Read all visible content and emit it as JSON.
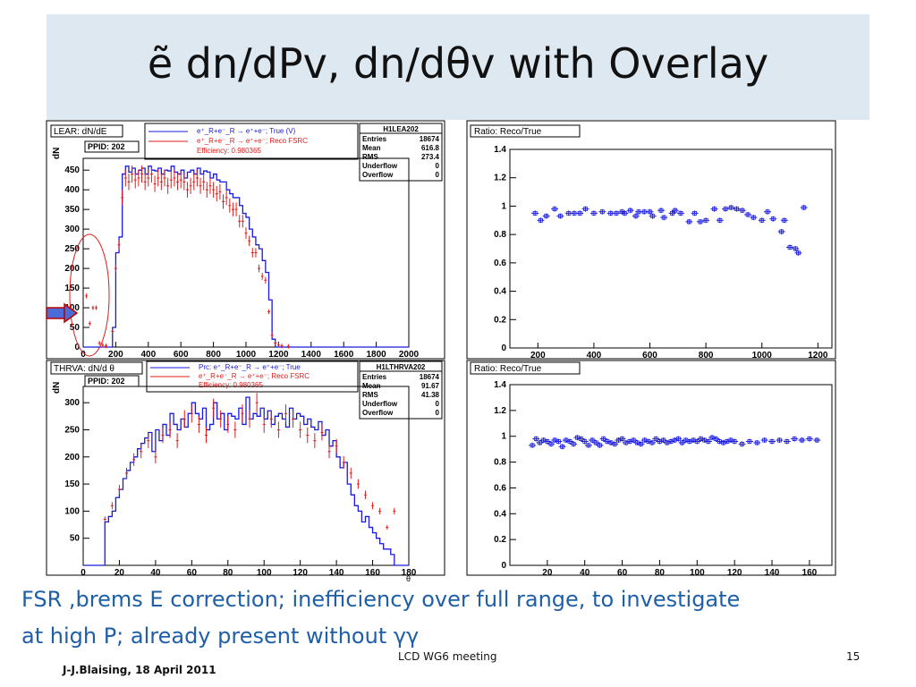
{
  "slide": {
    "title": "ẽ dn/dPv, dn/dθv with Overlay",
    "caption_line1": "FSR ,brems E correction; inefficiency over full range, to investigate",
    "caption_line2": "at high P; already present without γγ",
    "footer_author": "J-J.Blaising, 18 April 2011",
    "footer_meeting": "LCD WG6 meeting",
    "page_number": "15"
  },
  "colors": {
    "title_band": "#dde8f1",
    "true_series": "#1a1adc",
    "reco_series": "#e11d1d",
    "caption": "#1f5fa8"
  },
  "chart_data": [
    {
      "type": "line",
      "title": "LEAR: dN/dE",
      "ppid": "PPID: 202",
      "ylabel": "dN",
      "xlim": [
        0,
        2000
      ],
      "ylim": [
        0,
        480
      ],
      "xticks": [
        0,
        200,
        400,
        600,
        800,
        1000,
        1200,
        1400,
        1600,
        1800,
        2000
      ],
      "yticks": [
        0,
        50,
        100,
        150,
        200,
        250,
        300,
        350,
        400,
        450
      ],
      "legend": {
        "line1": "e⁺_R+e⁻_R → e⁺+e⁻; True (V)",
        "line2": "e⁺_R+e⁻_R → e⁺+e⁻; Reco FSRC",
        "line3": "Efficiency: 0.980365"
      },
      "stats": {
        "name": "H1LEA202",
        "rows": [
          [
            "Entries",
            "18674"
          ],
          [
            "Mean",
            "616.8"
          ],
          [
            "RMS",
            "273.4"
          ],
          [
            "Underflow",
            "0"
          ],
          [
            "Overflow",
            "0"
          ]
        ]
      },
      "series": [
        {
          "name": "True (V)",
          "x": [
            0,
            20,
            40,
            60,
            80,
            100,
            120,
            140,
            160,
            180,
            200,
            220,
            240,
            260,
            280,
            300,
            320,
            340,
            360,
            380,
            400,
            420,
            440,
            460,
            480,
            500,
            520,
            540,
            560,
            580,
            600,
            620,
            640,
            660,
            680,
            700,
            720,
            740,
            760,
            780,
            800,
            820,
            840,
            860,
            880,
            900,
            920,
            940,
            960,
            980,
            1000,
            1020,
            1040,
            1060,
            1080,
            1100,
            1120,
            1140,
            1160,
            1180,
            1200,
            1220,
            1240,
            1260,
            1280,
            1300,
            1400,
            1500,
            1600,
            1700,
            1800,
            1900,
            2000
          ],
          "values": [
            0,
            0,
            0,
            0,
            0,
            0,
            0,
            0,
            0,
            50,
            240,
            280,
            440,
            460,
            445,
            455,
            440,
            450,
            455,
            440,
            460,
            450,
            448,
            455,
            440,
            450,
            448,
            460,
            445,
            440,
            450,
            430,
            445,
            450,
            440,
            455,
            440,
            448,
            445,
            430,
            440,
            425,
            420,
            420,
            400,
            390,
            380,
            380,
            360,
            340,
            330,
            300,
            280,
            260,
            250,
            220,
            190,
            120,
            20,
            0,
            0,
            0,
            0,
            0,
            0,
            0,
            0,
            0,
            0,
            0,
            0,
            0,
            0
          ]
        },
        {
          "name": "Reco FSRC",
          "x": [
            20,
            40,
            60,
            80,
            100,
            120,
            140,
            180,
            200,
            220,
            240,
            260,
            280,
            300,
            320,
            340,
            360,
            380,
            400,
            420,
            440,
            460,
            480,
            500,
            520,
            540,
            560,
            580,
            600,
            620,
            640,
            660,
            680,
            700,
            720,
            740,
            760,
            780,
            800,
            820,
            840,
            860,
            880,
            900,
            920,
            940,
            960,
            980,
            1000,
            1020,
            1040,
            1060,
            1080,
            1100,
            1120,
            1140,
            1160,
            1180,
            1200,
            1220,
            1260
          ],
          "values": [
            130,
            60,
            100,
            100,
            10,
            5,
            3,
            40,
            200,
            260,
            380,
            430,
            420,
            440,
            425,
            430,
            440,
            420,
            430,
            440,
            415,
            430,
            420,
            430,
            410,
            425,
            430,
            420,
            425,
            420,
            400,
            410,
            420,
            430,
            410,
            420,
            400,
            410,
            400,
            390,
            395,
            370,
            380,
            360,
            350,
            350,
            320,
            320,
            290,
            270,
            240,
            240,
            200,
            180,
            170,
            90,
            30,
            10,
            5,
            3,
            2
          ]
        }
      ]
    },
    {
      "type": "scatter",
      "title": "Ratio: Reco/True",
      "xlim": [
        100,
        1250
      ],
      "ylim": [
        0,
        1.4
      ],
      "xticks": [
        200,
        400,
        600,
        800,
        1000,
        1200
      ],
      "yticks": [
        0,
        0.2,
        0.4,
        0.6,
        0.8,
        1,
        1.2,
        1.4
      ],
      "series": [
        {
          "name": "Ratio",
          "x": [
            190,
            210,
            230,
            260,
            280,
            310,
            330,
            350,
            370,
            400,
            430,
            460,
            480,
            500,
            510,
            530,
            550,
            560,
            580,
            600,
            610,
            640,
            650,
            680,
            690,
            710,
            740,
            760,
            780,
            800,
            830,
            850,
            870,
            890,
            910,
            930,
            950,
            970,
            1000,
            1020,
            1040,
            1070,
            1080,
            1100,
            1120,
            1130,
            1150
          ],
          "values": [
            0.95,
            0.9,
            0.93,
            0.98,
            0.93,
            0.95,
            0.95,
            0.95,
            0.98,
            0.95,
            0.96,
            0.95,
            0.95,
            0.96,
            0.95,
            0.97,
            0.93,
            0.96,
            0.96,
            0.96,
            0.93,
            0.97,
            0.92,
            0.95,
            0.97,
            0.95,
            0.89,
            0.95,
            0.89,
            0.9,
            0.98,
            0.9,
            0.98,
            0.99,
            0.98,
            0.97,
            0.94,
            0.92,
            0.9,
            0.96,
            0.91,
            0.82,
            0.9,
            0.71,
            0.7,
            0.67,
            0.99
          ]
        }
      ]
    },
    {
      "type": "line",
      "title": "THRVA: dN/d θ",
      "ppid": "PPID: 202",
      "ylabel": "dN",
      "xlabel": "θ",
      "xlim": [
        0,
        180
      ],
      "ylim": [
        0,
        330
      ],
      "xticks": [
        0,
        20,
        40,
        60,
        80,
        100,
        120,
        140,
        160,
        180
      ],
      "yticks": [
        50,
        100,
        150,
        200,
        250,
        300
      ],
      "legend": {
        "line1": "Prc: e⁺_R+e⁻_R → e⁺+e⁻; True",
        "line2": "e⁺_R+e⁻_R → e⁺+e⁻; Reco FSRC",
        "line3": "Efficiency: 0.980365"
      },
      "stats": {
        "name": "H1LTHRVA202",
        "rows": [
          [
            "Entries",
            "18674"
          ],
          [
            "Mean",
            "91.67"
          ],
          [
            "RMS",
            "41.38"
          ],
          [
            "Underflow",
            "0"
          ],
          [
            "Overflow",
            "0"
          ]
        ]
      },
      "series": [
        {
          "name": "True",
          "x": [
            0,
            5,
            10,
            12,
            14,
            16,
            18,
            20,
            22,
            24,
            26,
            28,
            30,
            32,
            34,
            36,
            38,
            40,
            42,
            44,
            46,
            48,
            50,
            52,
            54,
            56,
            58,
            60,
            62,
            64,
            66,
            68,
            70,
            72,
            74,
            76,
            78,
            80,
            82,
            84,
            86,
            88,
            90,
            92,
            94,
            96,
            98,
            100,
            102,
            104,
            106,
            108,
            110,
            112,
            114,
            116,
            118,
            120,
            122,
            124,
            126,
            128,
            130,
            132,
            134,
            136,
            138,
            140,
            142,
            144,
            146,
            148,
            150,
            152,
            154,
            156,
            158,
            160,
            162,
            164,
            166,
            168,
            170,
            172,
            175,
            180
          ],
          "values": [
            0,
            0,
            0,
            80,
            90,
            100,
            125,
            140,
            160,
            175,
            190,
            200,
            215,
            225,
            235,
            245,
            210,
            250,
            230,
            260,
            240,
            280,
            260,
            250,
            270,
            255,
            280,
            300,
            280,
            270,
            290,
            250,
            260,
            300,
            270,
            280,
            250,
            280,
            275,
            270,
            290,
            260,
            310,
            270,
            280,
            275,
            290,
            270,
            285,
            260,
            275,
            280,
            270,
            255,
            290,
            270,
            280,
            275,
            260,
            270,
            255,
            250,
            265,
            240,
            250,
            220,
            230,
            200,
            180,
            190,
            150,
            130,
            110,
            100,
            80,
            90,
            70,
            60,
            50,
            40,
            30,
            30,
            20,
            0,
            0,
            0
          ]
        },
        {
          "name": "Reco FSRC",
          "x": [
            12,
            16,
            20,
            24,
            28,
            32,
            36,
            40,
            44,
            48,
            52,
            56,
            60,
            64,
            68,
            72,
            76,
            80,
            84,
            88,
            92,
            96,
            100,
            104,
            108,
            112,
            116,
            120,
            124,
            128,
            132,
            136,
            140,
            144,
            148,
            152,
            156,
            160,
            164,
            168,
            172
          ],
          "values": [
            85,
            110,
            140,
            170,
            195,
            210,
            230,
            200,
            240,
            250,
            230,
            270,
            280,
            260,
            240,
            290,
            270,
            260,
            250,
            280,
            270,
            300,
            260,
            270,
            250,
            280,
            270,
            250,
            240,
            230,
            245,
            210,
            220,
            190,
            170,
            150,
            130,
            110,
            100,
            70,
            100
          ]
        }
      ]
    },
    {
      "type": "scatter",
      "title": "Ratio: Reco/True",
      "xlim": [
        0,
        172
      ],
      "ylim": [
        0,
        1.4
      ],
      "xticks": [
        20,
        40,
        60,
        80,
        100,
        120,
        140,
        160
      ],
      "yticks": [
        0,
        0.2,
        0.4,
        0.6,
        0.8,
        1,
        1.2,
        1.4
      ],
      "series": [
        {
          "name": "Ratio",
          "x": [
            12,
            14,
            16,
            18,
            20,
            22,
            24,
            26,
            28,
            30,
            32,
            34,
            36,
            38,
            40,
            42,
            44,
            46,
            48,
            50,
            52,
            54,
            56,
            58,
            60,
            62,
            64,
            66,
            68,
            70,
            72,
            74,
            76,
            78,
            80,
            82,
            84,
            86,
            88,
            90,
            92,
            94,
            96,
            98,
            100,
            102,
            104,
            106,
            108,
            110,
            112,
            114,
            116,
            118,
            120,
            124,
            128,
            132,
            136,
            140,
            144,
            148,
            152,
            156,
            160,
            164
          ],
          "values": [
            0.93,
            0.98,
            0.95,
            0.97,
            0.96,
            0.94,
            0.97,
            0.96,
            0.92,
            0.97,
            0.96,
            0.94,
            0.99,
            0.98,
            0.96,
            0.93,
            0.97,
            0.95,
            0.93,
            0.98,
            0.96,
            0.95,
            0.94,
            0.97,
            0.98,
            0.95,
            0.96,
            0.97,
            0.95,
            0.94,
            0.97,
            0.96,
            0.95,
            0.98,
            0.96,
            0.97,
            0.95,
            0.96,
            0.97,
            0.98,
            0.95,
            0.97,
            0.96,
            0.97,
            0.96,
            0.98,
            0.97,
            0.96,
            0.99,
            0.98,
            0.96,
            0.95,
            0.96,
            0.97,
            0.96,
            0.94,
            0.96,
            0.95,
            0.97,
            0.96,
            0.97,
            0.96,
            0.98,
            0.97,
            0.98,
            0.97
          ]
        }
      ]
    }
  ]
}
